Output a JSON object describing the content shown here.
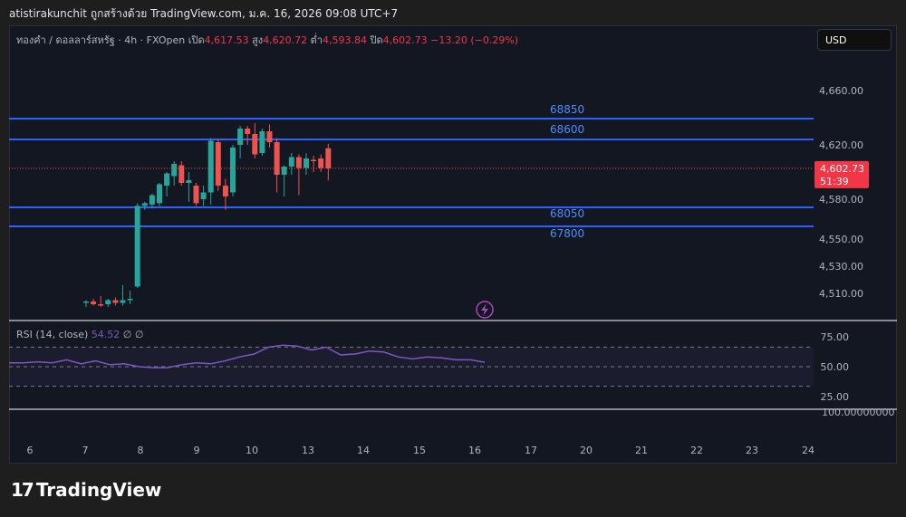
{
  "header": {
    "publisher_line": "atistirakunchit ถูกสร้างด้วย TradingView.com, ม.ค. 16, 2026 09:08 UTC+7"
  },
  "legend": {
    "symbol": "ทองคำ / ดอลลาร์สหรัฐ · 4h · FXOpen",
    "open_label": "เปิด",
    "open": "4,617.53",
    "high_label": "สูง",
    "high": "4,620.72",
    "low_label": "ต่ำ",
    "low": "4,593.84",
    "close_label": "ปิด",
    "close": "4,602.73",
    "change": "−13.20 (−0.29%)"
  },
  "currency_button": "USD",
  "price_axis": {
    "ticks": [
      "4,660.00",
      "4,620.00",
      "4,580.00",
      "4,550.00",
      "4,530.00",
      "4,510.00"
    ],
    "current_price": "4,602.73",
    "countdown": "51:39"
  },
  "rsi": {
    "label": "RSI (14, close)",
    "value": "54.52",
    "extra": "∅ ∅",
    "ticks": [
      "75.00",
      "50.00",
      "25.00"
    ],
    "upper_overflow": "100.00000000"
  },
  "time_axis": [
    "6",
    "7",
    "8",
    "9",
    "10",
    "13",
    "14",
    "15",
    "16",
    "17",
    "20",
    "21",
    "22",
    "23",
    "24"
  ],
  "brand": {
    "mark": "17",
    "name": "TradingView"
  },
  "colors": {
    "up": "#26a69a",
    "down": "#ef5350",
    "level": "#2962ff",
    "level_text": "#4c8dff",
    "rsi": "#7e57c2",
    "price_tag": "#f23645"
  },
  "chart_data": {
    "type": "candlestick",
    "y_unit": "USD",
    "price_levels_labels": [
      "68850",
      "68600",
      "68050",
      "67800"
    ],
    "candles": [
      {
        "o": 4503,
        "h": 4505,
        "l": 4500,
        "c": 4504
      },
      {
        "o": 4504,
        "h": 4506,
        "l": 4501,
        "c": 4502
      },
      {
        "o": 4502,
        "h": 4508,
        "l": 4500,
        "c": 4501
      },
      {
        "o": 4502,
        "h": 4506,
        "l": 4500,
        "c": 4505
      },
      {
        "o": 4505,
        "h": 4507,
        "l": 4501,
        "c": 4503
      },
      {
        "o": 4503,
        "h": 4516,
        "l": 4501,
        "c": 4505
      },
      {
        "o": 4505,
        "h": 4512,
        "l": 4502,
        "c": 4506
      },
      {
        "o": 4515,
        "h": 4577,
        "l": 4514,
        "c": 4575
      },
      {
        "o": 4575,
        "h": 4578,
        "l": 4572,
        "c": 4577
      },
      {
        "o": 4576,
        "h": 4584,
        "l": 4573,
        "c": 4583
      },
      {
        "o": 4577,
        "h": 4592,
        "l": 4575,
        "c": 4591
      },
      {
        "o": 4590,
        "h": 4600,
        "l": 4582,
        "c": 4599
      },
      {
        "o": 4597,
        "h": 4608,
        "l": 4590,
        "c": 4606
      },
      {
        "o": 4605,
        "h": 4608,
        "l": 4590,
        "c": 4592
      },
      {
        "o": 4592,
        "h": 4600,
        "l": 4578,
        "c": 4594
      },
      {
        "o": 4590,
        "h": 4592,
        "l": 4575,
        "c": 4577
      },
      {
        "o": 4580,
        "h": 4590,
        "l": 4575,
        "c": 4585
      },
      {
        "o": 4585,
        "h": 4625,
        "l": 4576,
        "c": 4623
      },
      {
        "o": 4622,
        "h": 4624,
        "l": 4586,
        "c": 4590
      },
      {
        "o": 4590,
        "h": 4595,
        "l": 4572,
        "c": 4582
      },
      {
        "o": 4585,
        "h": 4620,
        "l": 4582,
        "c": 4618
      },
      {
        "o": 4620,
        "h": 4634,
        "l": 4610,
        "c": 4632
      },
      {
        "o": 4632,
        "h": 4634,
        "l": 4620,
        "c": 4628
      },
      {
        "o": 4628,
        "h": 4636,
        "l": 4610,
        "c": 4613
      },
      {
        "o": 4614,
        "h": 4632,
        "l": 4612,
        "c": 4630
      },
      {
        "o": 4630,
        "h": 4635,
        "l": 4618,
        "c": 4622
      },
      {
        "o": 4622,
        "h": 4625,
        "l": 4585,
        "c": 4598
      },
      {
        "o": 4598,
        "h": 4605,
        "l": 4582,
        "c": 4604
      },
      {
        "o": 4604,
        "h": 4614,
        "l": 4598,
        "c": 4611
      },
      {
        "o": 4611,
        "h": 4613,
        "l": 4583,
        "c": 4603
      },
      {
        "o": 4603,
        "h": 4614,
        "l": 4598,
        "c": 4610
      },
      {
        "o": 4609,
        "h": 4612,
        "l": 4600,
        "c": 4608
      },
      {
        "o": 4610,
        "h": 4613,
        "l": 4600,
        "c": 4603
      },
      {
        "o": 4617.53,
        "h": 4620.72,
        "l": 4593.84,
        "c": 4602.73
      }
    ],
    "rsi": [
      54,
      54,
      55,
      54,
      57,
      53,
      56,
      52,
      53,
      50,
      49,
      49,
      52,
      54,
      53,
      56,
      60,
      63,
      70,
      72,
      71,
      67,
      70,
      62,
      63,
      66,
      65,
      60,
      58,
      60,
      59,
      57,
      57,
      54.52
    ]
  }
}
